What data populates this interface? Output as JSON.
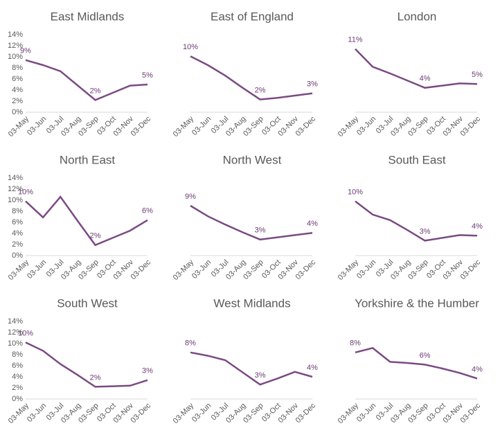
{
  "chart_data": [
    {
      "type": "line",
      "title": "East Midlands",
      "categories": [
        "03-May",
        "03-Jun",
        "03-Jul",
        "03-Aug",
        "03-Sep",
        "03-Oct",
        "03-Nov",
        "03-Dec"
      ],
      "series": [
        {
          "color": "#7a4a82",
          "values": [
            9.4,
            8.5,
            7.4,
            4.8,
            2.2,
            3.5,
            4.8,
            5.0
          ],
          "value_labels": [
            "9%",
            null,
            null,
            null,
            "2%",
            null,
            null,
            "5%"
          ]
        }
      ],
      "ylim": [
        0,
        14
      ],
      "yticks": [
        {
          "value": 0,
          "label": "0%"
        },
        {
          "value": 2,
          "label": "2%"
        },
        {
          "value": 4,
          "label": "4%"
        },
        {
          "value": 6,
          "label": "6%"
        },
        {
          "value": 8,
          "label": "8%"
        },
        {
          "value": 10,
          "label": "10%"
        },
        {
          "value": 12,
          "label": "12%"
        },
        {
          "value": 14,
          "label": "14%"
        }
      ]
    },
    {
      "type": "line",
      "title": "East of England",
      "categories": [
        "03-May",
        "03-Jun",
        "03-Jul",
        "03-Aug",
        "03-Sep",
        "03-Oct",
        "03-Nov",
        "03-Dec"
      ],
      "series": [
        {
          "color": "#7a4a82",
          "values": [
            10.1,
            8.5,
            6.6,
            4.4,
            2.3,
            2.6,
            3.0,
            3.4
          ],
          "value_labels": [
            "10%",
            null,
            null,
            null,
            "2%",
            null,
            null,
            "3%"
          ]
        }
      ],
      "ylim": [
        0,
        14
      ]
    },
    {
      "type": "line",
      "title": "London",
      "categories": [
        "03-May",
        "03-Jun",
        "03-Jul",
        "03-Aug",
        "03-Sep",
        "03-Oct",
        "03-Nov",
        "03-Dec"
      ],
      "series": [
        {
          "color": "#7a4a82",
          "values": [
            11.4,
            8.2,
            7.0,
            5.7,
            4.4,
            4.8,
            5.2,
            5.1
          ],
          "value_labels": [
            "11%",
            null,
            null,
            null,
            "4%",
            null,
            null,
            "5%"
          ]
        }
      ],
      "ylim": [
        0,
        14
      ]
    },
    {
      "type": "line",
      "title": "North East",
      "categories": [
        "03-May",
        "03-Jun",
        "03-Jul",
        "03-Aug",
        "03-Sep",
        "03-Oct",
        "03-Nov",
        "03-Dec"
      ],
      "series": [
        {
          "color": "#7a4a82",
          "values": [
            9.8,
            6.9,
            10.6,
            6.2,
            1.9,
            3.2,
            4.5,
            6.4
          ],
          "value_labels": [
            "10%",
            null,
            null,
            null,
            "2%",
            null,
            null,
            "6%"
          ]
        }
      ],
      "ylim": [
        0,
        14
      ],
      "yticks": [
        {
          "value": 0,
          "label": "0%"
        },
        {
          "value": 2,
          "label": "2%"
        },
        {
          "value": 4,
          "label": "4%"
        },
        {
          "value": 6,
          "label": "6%"
        },
        {
          "value": 8,
          "label": "8%"
        },
        {
          "value": 10,
          "label": "10%"
        },
        {
          "value": 12,
          "label": "12%"
        },
        {
          "value": 14,
          "label": "14%"
        }
      ]
    },
    {
      "type": "line",
      "title": "North West",
      "categories": [
        "03-May",
        "03-Jun",
        "03-Jul",
        "03-Aug",
        "03-Sep",
        "03-Oct",
        "03-Nov",
        "03-Dec"
      ],
      "series": [
        {
          "color": "#7a4a82",
          "values": [
            9.0,
            7.1,
            5.6,
            4.2,
            2.9,
            3.3,
            3.7,
            4.1
          ],
          "value_labels": [
            "9%",
            null,
            null,
            null,
            "3%",
            null,
            null,
            "4%"
          ]
        }
      ],
      "ylim": [
        0,
        14
      ]
    },
    {
      "type": "line",
      "title": "South East",
      "categories": [
        "03-May",
        "03-Jun",
        "03-Jul",
        "03-Aug",
        "03-Sep",
        "03-Oct",
        "03-Nov",
        "03-Dec"
      ],
      "series": [
        {
          "color": "#7a4a82",
          "values": [
            9.8,
            7.4,
            6.4,
            4.6,
            2.7,
            3.2,
            3.7,
            3.6
          ],
          "value_labels": [
            "10%",
            null,
            null,
            null,
            "3%",
            null,
            null,
            "4%"
          ]
        }
      ],
      "ylim": [
        0,
        14
      ]
    },
    {
      "type": "line",
      "title": "South West",
      "categories": [
        "03-May",
        "03-Jun",
        "03-Jul",
        "03-Aug",
        "03-Sep",
        "03-Oct",
        "03-Nov",
        "03-Dec"
      ],
      "series": [
        {
          "color": "#7a4a82",
          "values": [
            10.2,
            8.7,
            6.3,
            4.3,
            2.2,
            2.3,
            2.4,
            3.4
          ],
          "value_labels": [
            "10%",
            null,
            null,
            null,
            "2%",
            null,
            null,
            "3%"
          ]
        }
      ],
      "ylim": [
        0,
        14
      ],
      "yticks": [
        {
          "value": 0,
          "label": "0%"
        },
        {
          "value": 2,
          "label": "2%"
        },
        {
          "value": 4,
          "label": "4%"
        },
        {
          "value": 6,
          "label": "6%"
        },
        {
          "value": 8,
          "label": "8%"
        },
        {
          "value": 10,
          "label": "10%"
        },
        {
          "value": 12,
          "label": "12%"
        },
        {
          "value": 14,
          "label": "14%"
        }
      ]
    },
    {
      "type": "line",
      "title": "West Midlands",
      "categories": [
        "03-May",
        "03-Jun",
        "03-Jul",
        "03-Aug",
        "03-Sep",
        "03-Oct",
        "03-Nov",
        "03-Dec"
      ],
      "series": [
        {
          "color": "#7a4a82",
          "values": [
            8.4,
            7.8,
            7.0,
            4.8,
            2.6,
            3.7,
            4.9,
            4.0
          ],
          "value_labels": [
            "8%",
            null,
            null,
            null,
            "3%",
            null,
            null,
            "4%"
          ]
        }
      ],
      "ylim": [
        0,
        14
      ]
    },
    {
      "type": "line",
      "title": "Yorkshire & the Humber",
      "categories": [
        "03-May",
        "03-Jun",
        "03-Jul",
        "03-Aug",
        "03-Sep",
        "03-Oct",
        "03-Nov",
        "03-Dec"
      ],
      "series": [
        {
          "color": "#7a4a82",
          "values": [
            8.4,
            9.2,
            6.7,
            6.5,
            6.2,
            5.5,
            4.7,
            3.7
          ],
          "value_labels": [
            "8%",
            null,
            null,
            null,
            "6%",
            null,
            null,
            "4%"
          ]
        }
      ],
      "ylim": [
        0,
        14
      ]
    }
  ]
}
